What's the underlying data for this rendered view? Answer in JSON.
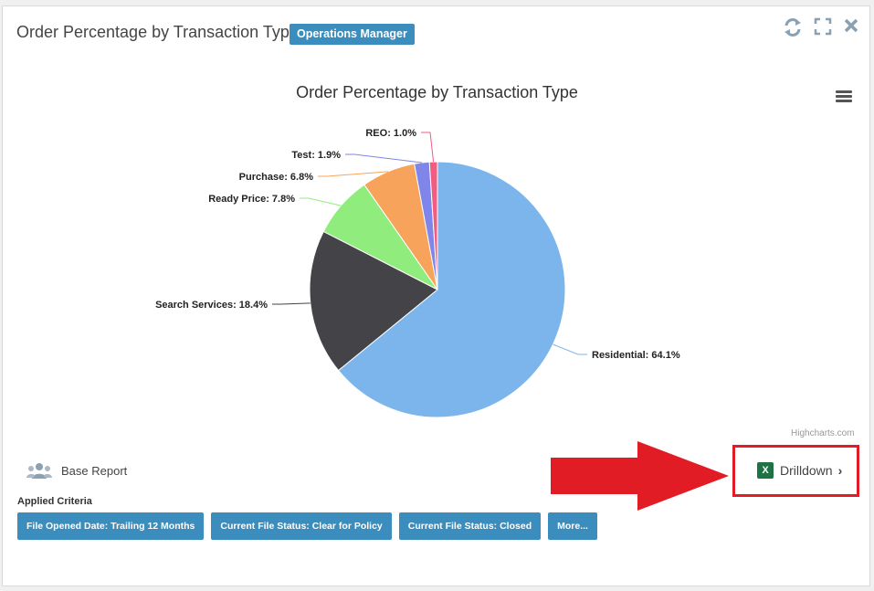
{
  "header": {
    "title": "Order Percentage by Transaction Type",
    "badge": "Operations Manager"
  },
  "icons": {
    "refresh": "refresh-icon",
    "expand": "expand-icon",
    "close": "close-icon",
    "menu": "hamburger-menu-icon",
    "users": "users-icon",
    "excel": "excel-icon"
  },
  "chart_data": {
    "type": "pie",
    "title": "Order Percentage by Transaction Type",
    "slices": [
      {
        "label": "Residential",
        "value": 64.1,
        "color": "#7cb5ec",
        "data_label": "Residential: 64.1%"
      },
      {
        "label": "Search Services",
        "value": 18.4,
        "color": "#434348",
        "data_label": "Search Services: 18.4%"
      },
      {
        "label": "Ready Price",
        "value": 7.8,
        "color": "#90ed7d",
        "data_label": "Ready Price: 7.8%"
      },
      {
        "label": "Purchase",
        "value": 6.8,
        "color": "#f7a35c",
        "data_label": "Purchase: 6.8%"
      },
      {
        "label": "Test",
        "value": 1.9,
        "color": "#8085e9",
        "data_label": "Test: 1.9%"
      },
      {
        "label": "REO",
        "value": 1.0,
        "color": "#f15c80",
        "data_label": "REO: 1.0%"
      }
    ],
    "credits": "Highcharts.com"
  },
  "footer": {
    "base_report": "Base Report",
    "drilldown": "Drilldown",
    "excel_letter": "X",
    "applied_criteria_label": "Applied Criteria",
    "criteria": [
      "File Opened Date: Trailing 12 Months",
      "Current File Status: Clear for Policy",
      "Current File Status: Closed",
      "More..."
    ]
  },
  "colors": {
    "accent": "#3a8dbd",
    "highlight": "#e21c24"
  }
}
